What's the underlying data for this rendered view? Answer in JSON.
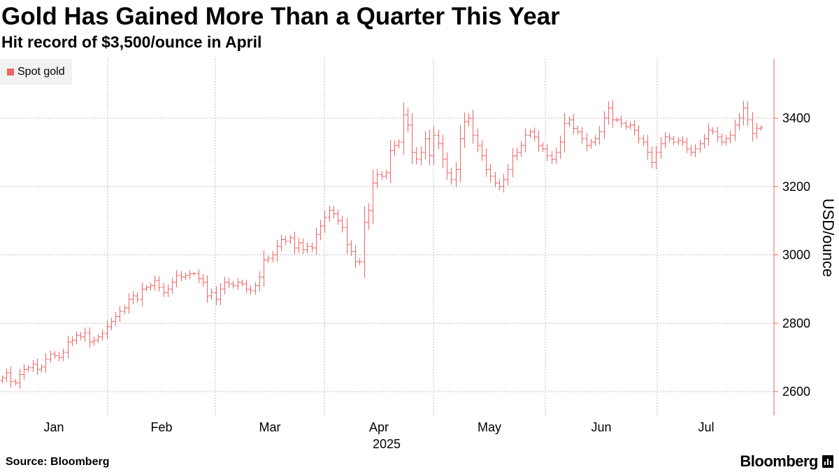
{
  "chart_data": {
    "type": "ohlc",
    "title": "Gold Has Gained More Than a Quarter This Year",
    "subtitle": "Hit record of $3,500/ounce in April",
    "legend": [
      "Spot gold"
    ],
    "ylabel": "USD/ounce",
    "xlabel": "2025",
    "ylim": [
      2530,
      3580
    ],
    "yticks": [
      2600,
      2800,
      3000,
      3200,
      3400
    ],
    "month_labels": [
      "Jan",
      "Feb",
      "Mar",
      "Apr",
      "May",
      "Jun",
      "Jul"
    ],
    "series": [
      {
        "name": "Spot gold",
        "color": "#f06464",
        "closes": [
          2640,
          2655,
          2630,
          2625,
          2650,
          2665,
          2670,
          2680,
          2665,
          2672,
          2695,
          2710,
          2705,
          2700,
          2715,
          2745,
          2750,
          2765,
          2760,
          2772,
          2745,
          2750,
          2760,
          2770,
          2790,
          2805,
          2820,
          2835,
          2845,
          2870,
          2880,
          2870,
          2900,
          2905,
          2910,
          2925,
          2905,
          2890,
          2900,
          2920,
          2940,
          2935,
          2940,
          2945,
          2945,
          2930,
          2920,
          2880,
          2890,
          2870,
          2900,
          2920,
          2915,
          2910,
          2920,
          2915,
          2900,
          2895,
          2910,
          2935,
          2985,
          2990,
          3000,
          3025,
          3045,
          3040,
          3050,
          3020,
          3035,
          3015,
          3025,
          3020,
          3060,
          3085,
          3110,
          3130,
          3120,
          3100,
          3080,
          3030,
          3010,
          2980,
          2980,
          3095,
          3130,
          3210,
          3235,
          3230,
          3240,
          3305,
          3320,
          3330,
          3410,
          3380,
          3300,
          3280,
          3300,
          3340,
          3290,
          3350,
          3325,
          3280,
          3240,
          3220,
          3250,
          3340,
          3390,
          3400,
          3350,
          3320,
          3290,
          3250,
          3230,
          3210,
          3200,
          3220,
          3250,
          3290,
          3300,
          3320,
          3350,
          3360,
          3345,
          3320,
          3310,
          3290,
          3280,
          3300,
          3330,
          3385,
          3395,
          3370,
          3360,
          3340,
          3320,
          3330,
          3340,
          3360,
          3400,
          3430,
          3395,
          3395,
          3385,
          3375,
          3380,
          3365,
          3340,
          3330,
          3300,
          3270,
          3300,
          3325,
          3345,
          3340,
          3330,
          3335,
          3330,
          3310,
          3300,
          3310,
          3325,
          3340,
          3365,
          3360,
          3345,
          3330,
          3340,
          3350,
          3380,
          3400,
          3430,
          3395,
          3355,
          3370,
          3372
        ]
      }
    ]
  },
  "footer": {
    "source": "Source: Bloomberg",
    "brand": "Bloomberg"
  }
}
